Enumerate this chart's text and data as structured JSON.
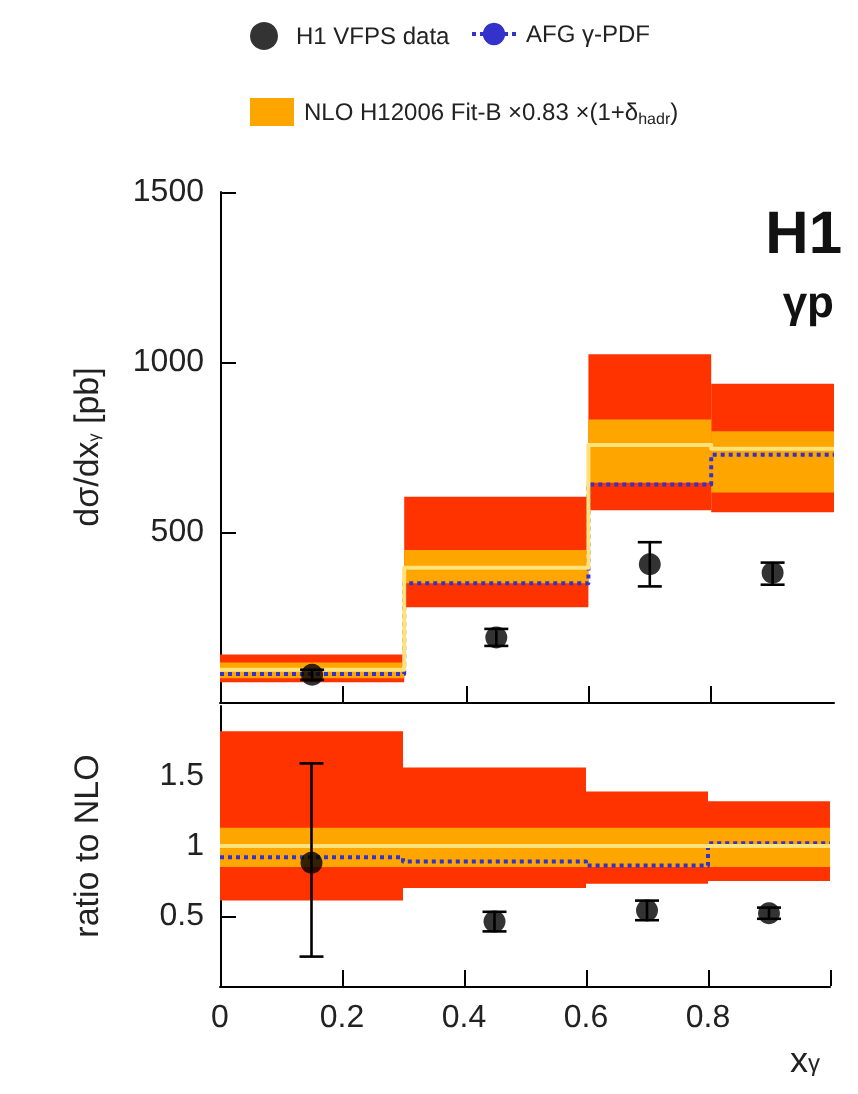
{
  "chart_data": [
    {
      "type": "step",
      "ylabel": "dσ/dx$_{γ}$ [pb]",
      "annotations": [
        "H1",
        "γp"
      ],
      "legend": "top",
      "tick_labels": "y",
      "xlim": [
        0,
        1
      ],
      "xticks": [
        0,
        0.2,
        0.4,
        0.6,
        0.8
      ],
      "ylim": [
        0,
        1500
      ],
      "yticks": [
        500,
        1000,
        1500
      ],
      "series": [
        {
          "type": "scatter",
          "name": "H1 VFPS data",
          "color": "#000000",
          "marker": "circle",
          "x": [
            0.15,
            0.45,
            0.7,
            0.9
          ],
          "values": [
            80,
            190,
            405,
            380
          ],
          "errors": [
            [
              65,
              95
            ],
            [
              165,
              215
            ],
            [
              340,
              470
            ],
            [
              345,
              410
            ]
          ]
        },
        {
          "name": "AFG γ-PDF",
          "color": "#3333cc",
          "line_style": "dotted",
          "x": [
            0,
            0.3,
            0.6,
            0.8,
            1
          ],
          "values": [
            82,
            349,
            640,
            727,
            727
          ]
        },
        {
          "type": "histogram",
          "color": "#ff3300",
          "bins": [
            0,
            0.3,
            0.6,
            0.8,
            1
          ],
          "base": [
            58,
            279,
            564,
            558
          ],
          "values": [
            82,
            325,
            459,
            378
          ]
        },
        {
          "type": "histogram",
          "name": "NLO H12006 Fit-B ×0.83 ×(1+δ$_{hadr}$)",
          "color": "#ffa500",
          "bins": [
            0,
            0.3,
            0.6,
            0.8,
            1
          ],
          "base": [
            70,
            349,
            645,
            616
          ],
          "values": [
            46,
            98,
            186,
            180
          ]
        },
        {
          "color": "#ffe27a",
          "x": [
            0,
            0.3,
            0.6,
            0.8,
            1
          ],
          "values": [
            95,
            395,
            756,
            745,
            745
          ]
        }
      ]
    },
    {
      "type": "step",
      "xlabel": "x$_{γ}$",
      "ylabel": "ratio to NLO",
      "xlim": [
        0,
        1
      ],
      "xticks": [
        0,
        0.2,
        0.4,
        0.6,
        0.8,
        {
          "value": 1,
          "label": null
        }
      ],
      "ylim": [
        0,
        2
      ],
      "yticks": [
        0.5,
        1,
        1.5
      ],
      "series": [
        {
          "type": "scatter",
          "color": "#000000",
          "marker": "circle",
          "x": [
            0.15,
            0.45,
            0.7,
            0.9
          ],
          "values": [
            0.88,
            0.46,
            0.54,
            0.52
          ],
          "errors": [
            [
              0.21,
              1.59
            ],
            [
              0.39,
              0.53
            ],
            [
              0.47,
              0.61
            ],
            [
              0.48,
              0.56
            ]
          ]
        },
        {
          "color": "#3333cc",
          "line_style": "dotted",
          "x": [
            0,
            0.3,
            0.6,
            0.8,
            1
          ],
          "values": [
            0.92,
            0.89,
            0.86,
            1.02,
            1.02
          ]
        },
        {
          "type": "histogram",
          "color": "#ff3300",
          "bins": [
            0,
            0.3,
            0.6,
            0.8,
            1
          ],
          "base": [
            0.61,
            0.7,
            0.73,
            0.75
          ],
          "values": [
            1.21,
            0.86,
            0.66,
            0.57
          ]
        },
        {
          "type": "histogram",
          "color": "#ffa500",
          "bins": [
            0,
            0.3,
            0.6,
            0.8,
            1
          ],
          "base": [
            0.85,
            0.85,
            0.85,
            0.85
          ],
          "values": [
            0.28,
            0.28,
            0.28,
            0.28
          ]
        },
        {
          "color": "#ffe27a",
          "x": [
            0,
            0.3,
            0.6,
            0.8,
            1
          ],
          "values": [
            1,
            1,
            1,
            1,
            1
          ]
        }
      ]
    }
  ]
}
